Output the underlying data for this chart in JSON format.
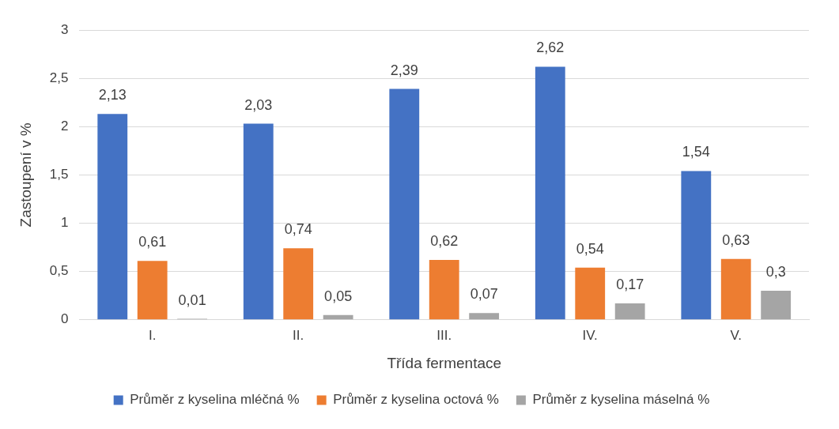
{
  "chart_data": {
    "type": "bar",
    "xlabel": "Třída fermentace",
    "ylabel": "Zastoupení v %",
    "categories": [
      "I.",
      "II.",
      "III.",
      "IV.",
      "V."
    ],
    "series": [
      {
        "name": "Průměr z kyselina mléčná %",
        "color": "#4472c4",
        "values": [
          2.13,
          2.03,
          2.39,
          2.62,
          1.54
        ],
        "value_labels": [
          "2,13",
          "2,03",
          "2,39",
          "2,62",
          "1,54"
        ]
      },
      {
        "name": "Průměr z kyselina octová %",
        "color": "#ed7d31",
        "values": [
          0.61,
          0.74,
          0.62,
          0.54,
          0.63
        ],
        "value_labels": [
          "0,61",
          "0,74",
          "0,62",
          "0,54",
          "0,63"
        ]
      },
      {
        "name": "Průměr z kyselina máselná %",
        "color": "#a5a5a5",
        "values": [
          0.01,
          0.05,
          0.07,
          0.17,
          0.3
        ],
        "value_labels": [
          "0,01",
          "0,05",
          "0,07",
          "0,17",
          "0,3"
        ]
      }
    ],
    "ylim": [
      0,
      3
    ],
    "yticks": [
      0,
      {
        "value": 0.5,
        "label": "0,5"
      },
      1,
      {
        "value": 1.5,
        "label": "1,5"
      },
      2,
      {
        "value": 2.5,
        "label": "2,5"
      },
      3
    ],
    "grid": "y",
    "legend": "bottom"
  }
}
